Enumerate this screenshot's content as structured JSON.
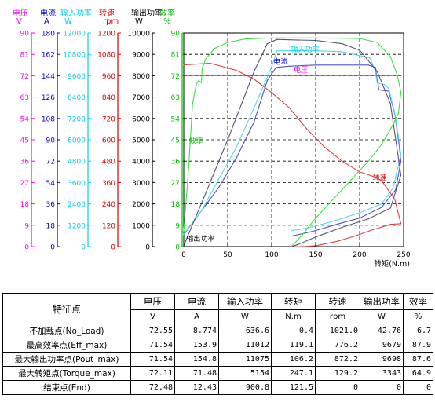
{
  "colors": {
    "voltage": "#ff00ff",
    "current": "#0000c8",
    "input_power": "#00d0f0",
    "speed": "#e00000",
    "output_power": "#000000",
    "efficiency": "#00c000",
    "voltage_line": "#cc00cc",
    "current_line": "#5050d0",
    "input_power_line": "#50d8f0",
    "speed_line": "#e04040",
    "output_power_line": "#555577",
    "efficiency_line": "#40e040"
  },
  "chart_data": {
    "type": "line",
    "xlabel": "转矩(N.m)",
    "x_ticks": [
      "0",
      "50",
      "100",
      "150",
      "200",
      "250"
    ],
    "xlim": [
      0,
      250
    ],
    "grid": true,
    "axes": [
      {
        "id": "voltage",
        "name": "电压",
        "unit": "V",
        "range": [
          0,
          90
        ],
        "ticks": [
          "0",
          "9",
          "18",
          "27",
          "36",
          "45",
          "54",
          "63",
          "72",
          "81",
          "90"
        ]
      },
      {
        "id": "current",
        "name": "电流",
        "unit": "A",
        "range": [
          0,
          180
        ],
        "ticks": [
          "0",
          "18",
          "36",
          "54",
          "72",
          "90",
          "108",
          "126",
          "144",
          "162",
          "180"
        ]
      },
      {
        "id": "input_power",
        "name": "输入功率",
        "unit": "W",
        "range": [
          0,
          12000
        ],
        "ticks": [
          "0",
          "1200",
          "2400",
          "3600",
          "4800",
          "6000",
          "7200",
          "8400",
          "9600",
          "10800",
          "12000"
        ]
      },
      {
        "id": "speed",
        "name": "转速",
        "unit": "rpm",
        "range": [
          0,
          1200
        ],
        "ticks": [
          "0",
          "120",
          "240",
          "360",
          "480",
          "600",
          "720",
          "840",
          "960",
          "1080",
          "1200"
        ]
      },
      {
        "id": "output_power",
        "name": "输出功率",
        "unit": "W",
        "range": [
          0,
          10000
        ],
        "ticks": [
          "0",
          "1000",
          "2000",
          "3000",
          "4000",
          "5000",
          "6000",
          "7000",
          "8000",
          "9000",
          "10000"
        ]
      },
      {
        "id": "efficiency",
        "name": "效率",
        "unit": "%",
        "range": [
          0,
          90
        ],
        "ticks": [
          "0",
          "9",
          "18",
          "27",
          "36",
          "45",
          "54",
          "63",
          "72",
          "81",
          "90"
        ]
      }
    ],
    "series": [
      {
        "id": "voltage",
        "name": "电压",
        "axis": "voltage",
        "label_at": [
          125,
          73.5
        ],
        "points": [
          [
            0,
            72.1
          ],
          [
            50,
            72.1
          ],
          [
            100,
            72.1
          ],
          [
            150,
            72.1
          ],
          [
            200,
            72.1
          ],
          [
            247,
            72.1
          ]
        ]
      },
      {
        "id": "current",
        "name": "电流",
        "axis": "current",
        "label_at": [
          102,
          154
        ],
        "points": [
          [
            0,
            10
          ],
          [
            20,
            30
          ],
          [
            40,
            50
          ],
          [
            60,
            75
          ],
          [
            80,
            105
          ],
          [
            95,
            140
          ],
          [
            105,
            151
          ],
          [
            120,
            152
          ],
          [
            150,
            153
          ],
          [
            180,
            153
          ],
          [
            210,
            153
          ],
          [
            218,
            151
          ],
          [
            220,
            140
          ],
          [
            222,
            132
          ],
          [
            233,
            131
          ],
          [
            240,
            112
          ],
          [
            245,
            85
          ],
          [
            247,
            72
          ],
          [
            241,
            48
          ],
          [
            225,
            33
          ],
          [
            200,
            24
          ],
          [
            175,
            19
          ],
          [
            150,
            13.5
          ],
          [
            130,
            10
          ],
          [
            122,
            8.8
          ]
        ]
      },
      {
        "id": "input_power",
        "name": "输入功率",
        "axis": "input_power",
        "label_at": [
          122,
          10950
        ],
        "points": [
          [
            0,
            700
          ],
          [
            20,
            2000
          ],
          [
            40,
            3800
          ],
          [
            60,
            5600
          ],
          [
            80,
            7800
          ],
          [
            100,
            10100
          ],
          [
            106,
            11000
          ],
          [
            120,
            11010
          ],
          [
            150,
            11000
          ],
          [
            180,
            10950
          ],
          [
            212,
            10600
          ],
          [
            218,
            9800
          ],
          [
            220,
            9200
          ],
          [
            228,
            9100
          ],
          [
            233,
            8900
          ],
          [
            240,
            7500
          ],
          [
            245,
            5900
          ],
          [
            247,
            5154
          ],
          [
            238,
            3300
          ],
          [
            225,
            2400
          ],
          [
            200,
            1900
          ],
          [
            175,
            1500
          ],
          [
            150,
            1150
          ],
          [
            130,
            950
          ],
          [
            122,
            900
          ]
        ]
      },
      {
        "id": "speed",
        "name": "转速",
        "axis": "speed",
        "label_at": [
          215,
          372
        ],
        "points": [
          [
            0,
            1021
          ],
          [
            30,
            1030
          ],
          [
            60,
            990
          ],
          [
            80,
            940
          ],
          [
            100,
            865
          ],
          [
            120,
            780
          ],
          [
            140,
            660
          ],
          [
            160,
            560
          ],
          [
            180,
            480
          ],
          [
            200,
            420
          ],
          [
            215,
            395
          ],
          [
            225,
            370
          ],
          [
            240,
            265
          ],
          [
            247,
            129
          ],
          [
            235,
            125
          ],
          [
            215,
            95
          ],
          [
            195,
            60
          ],
          [
            175,
            30
          ],
          [
            150,
            5
          ],
          [
            135,
            0
          ],
          [
            122,
            0
          ]
        ]
      },
      {
        "id": "output_power",
        "name": "输出功率",
        "axis": "output_power",
        "label_at": [
          3,
          250
        ],
        "points": [
          [
            0,
            43
          ],
          [
            25,
            2500
          ],
          [
            50,
            5000
          ],
          [
            80,
            8200
          ],
          [
            95,
            9500
          ],
          [
            106,
            9698
          ],
          [
            120,
            9679
          ],
          [
            150,
            9650
          ],
          [
            180,
            9500
          ],
          [
            200,
            9200
          ],
          [
            220,
            8200
          ],
          [
            235,
            6700
          ],
          [
            247,
            3343
          ],
          [
            235,
            1800
          ],
          [
            210,
            1300
          ],
          [
            180,
            900
          ],
          [
            150,
            450
          ],
          [
            130,
            100
          ],
          [
            122,
            0
          ]
        ]
      },
      {
        "id": "efficiency",
        "name": "效率",
        "axis": "efficiency",
        "label_at": [
          6,
          43.5
        ],
        "points": [
          [
            0,
            6.7
          ],
          [
            5,
            30
          ],
          [
            10,
            60
          ],
          [
            14,
            68
          ],
          [
            17,
            70
          ],
          [
            20,
            69
          ],
          [
            21,
            75
          ],
          [
            25,
            79
          ],
          [
            35,
            83.5
          ],
          [
            50,
            86
          ],
          [
            70,
            87.5
          ],
          [
            100,
            87.9
          ],
          [
            150,
            87.9
          ],
          [
            200,
            87.7
          ],
          [
            220,
            86
          ],
          [
            235,
            80
          ],
          [
            243,
            72
          ],
          [
            247,
            64.9
          ],
          [
            244,
            56
          ],
          [
            236,
            50
          ],
          [
            225,
            43
          ],
          [
            210,
            36
          ],
          [
            190,
            28
          ],
          [
            170,
            20
          ],
          [
            150,
            12
          ],
          [
            135,
            5
          ],
          [
            125,
            1
          ],
          [
            122,
            0
          ]
        ]
      }
    ]
  },
  "table": {
    "feature_header": "特征点",
    "columns": [
      {
        "name": "电压",
        "unit": "V"
      },
      {
        "name": "电流",
        "unit": "A"
      },
      {
        "name": "输入功率",
        "unit": "W"
      },
      {
        "name": "转矩",
        "unit": "N.m"
      },
      {
        "name": "转速",
        "unit": "rpm"
      },
      {
        "name": "输出功率",
        "unit": "W"
      },
      {
        "name": "效率",
        "unit": "%"
      }
    ],
    "rows": [
      {
        "label": "不加载点(No_Load)",
        "values": [
          "72.55",
          "8.774",
          "636.6",
          "0.4",
          "1021.0",
          "42.76",
          "6.7"
        ]
      },
      {
        "label": "最高效率点(Eff_max)",
        "values": [
          "71.54",
          "153.9",
          "11012",
          "119.1",
          "776.2",
          "9679",
          "87.9"
        ]
      },
      {
        "label": "最大输出功率点(Pout_max)",
        "values": [
          "71.54",
          "154.8",
          "11075",
          "106.2",
          "872.2",
          "9698",
          "87.6"
        ]
      },
      {
        "label": "最大转矩点(Torque_max)",
        "values": [
          "72.11",
          "71.48",
          "5154",
          "247.1",
          "129.2",
          "3343",
          "64.9"
        ]
      },
      {
        "label": "结束点(End)",
        "values": [
          "72.48",
          "12.43",
          "900.8",
          "121.5",
          "0",
          "0",
          "0"
        ]
      }
    ]
  }
}
